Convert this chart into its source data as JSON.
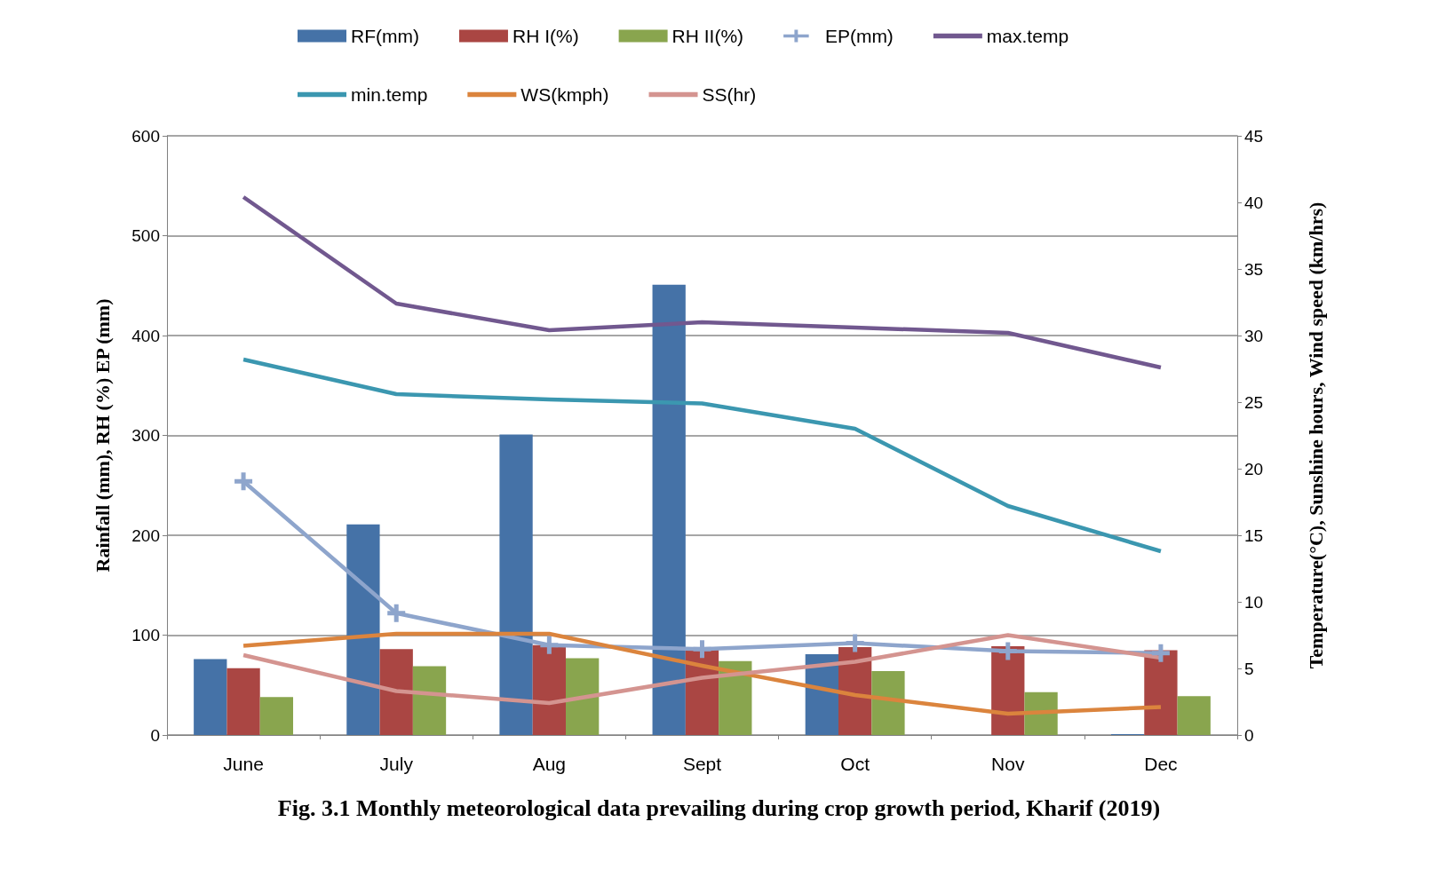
{
  "chart_data": {
    "type": "bar",
    "title": "Fig. 3.1 Monthly meteorological data prevailing during crop growth period, Kharif (2019)",
    "ylabel": "Rainfall (mm), RH (%) EP (mm)",
    "y2label": "Temperature(°C), Sunshine hours, Wind speed (km/hrs)",
    "categories": [
      "June",
      "July",
      "Aug",
      "Sept",
      "Oct",
      "Nov",
      "Dec"
    ],
    "series": [
      {
        "name": "RF(mm)",
        "color": "#4572a7",
        "values": [
          76,
          211,
          301,
          451,
          81,
          0,
          1
        ]
      },
      {
        "name": "RH I(%)",
        "color": "#aa4643",
        "values": [
          67,
          86,
          90,
          86,
          88,
          89,
          85
        ]
      },
      {
        "name": "RH II(%)",
        "color": "#89a54e",
        "values": [
          38,
          69,
          77,
          74,
          64,
          43,
          39
        ]
      },
      {
        "name": "EP(mm)",
        "type": "line",
        "color": "#8ea5cc",
        "marker": "cross",
        "values": [
          254,
          122,
          90,
          86,
          92,
          84,
          82
        ]
      },
      {
        "name": "max.temp",
        "type": "line",
        "axis": "y2",
        "color": "#71588f",
        "values": [
          40.4,
          32.4,
          30.4,
          31.0,
          30.6,
          30.2,
          27.6
        ]
      },
      {
        "name": "min.temp",
        "type": "line",
        "axis": "y2",
        "color": "#3b97b0",
        "values": [
          28.2,
          25.6,
          25.2,
          24.9,
          23.0,
          17.2,
          13.8
        ]
      },
      {
        "name": "WS(kmph)",
        "type": "line",
        "axis": "y2",
        "color": "#db843d",
        "values": [
          6.7,
          7.6,
          7.6,
          5.2,
          3.0,
          1.6,
          2.1
        ]
      },
      {
        "name": "SS(hr)",
        "type": "line",
        "axis": "y2",
        "color": "#d49490",
        "values": [
          6.0,
          3.3,
          2.4,
          4.3,
          5.5,
          7.5,
          5.8
        ]
      }
    ],
    "ylim": [
      0,
      600
    ],
    "yticks": [
      0,
      100,
      200,
      300,
      400,
      500,
      600
    ],
    "y2lim": [
      0,
      45
    ],
    "y2ticks": [
      0,
      5,
      10,
      15,
      20,
      25,
      30,
      35,
      40,
      45
    ],
    "grid": "y",
    "legend": "top",
    "marker": "none",
    "line_style": "solid"
  }
}
